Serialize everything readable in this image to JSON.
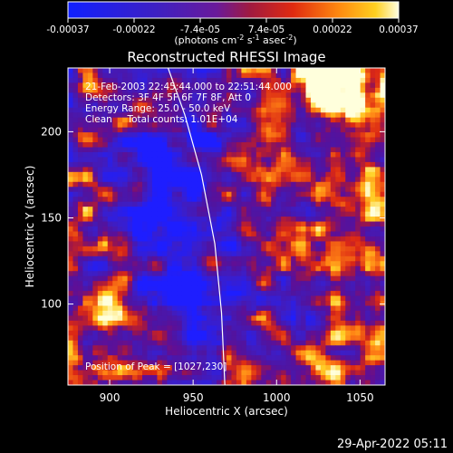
{
  "colorbar": {
    "tick_labels": [
      "-0.00037",
      "-0.00022",
      "-7.4e-05",
      "7.4e-05",
      "0.00022",
      "0.00037"
    ],
    "unit_main": "(photons cm",
    "unit_exp1": "-2",
    "unit_s": " s",
    "unit_exp2": "-1",
    "unit_asec": " asec",
    "unit_exp3": "-2",
    "unit_close": ")",
    "range": [
      -0.00037,
      0.00037
    ]
  },
  "chart_data": {
    "type": "heatmap",
    "title": "Reconstructed RHESSI Image",
    "xlabel": "Heliocentric X (arcsec)",
    "ylabel": "Heliocentric Y (arcsec)",
    "xlim": [
      875,
      1065
    ],
    "ylim": [
      53,
      237
    ],
    "xticks": [
      900,
      950,
      1000,
      1050
    ],
    "yticks": [
      100,
      150,
      200
    ],
    "colormap": "rhessi-blue-purple-red-yellow",
    "peak_position": [
      1027,
      230
    ],
    "limb_arc": [
      [
        935,
        237
      ],
      [
        945,
        210
      ],
      [
        955,
        175
      ],
      [
        963,
        135
      ],
      [
        967,
        95
      ],
      [
        969,
        53
      ]
    ]
  },
  "annotations": {
    "line1": "21-Feb-2003 22:45:44.000 to 22:51:44.000",
    "line2": "Detectors: 3F 4F 5F 6F 7F 8F, Att 0",
    "line3": "Energy Range: 25.0 - 50.0 keV",
    "line4": "Clean     Total counts: 1.01E+04",
    "peak_label": "Position of Peak = [1027,230]"
  },
  "footer": {
    "timestamp": "29-Apr-2022 05:11"
  },
  "colors": {
    "background": "#000000",
    "neg_max": "#1c1cff",
    "zero": "#5a0fa0",
    "pos_low": "#d02020",
    "pos_mid": "#ff7a10",
    "pos_max": "#ffffcc",
    "limb": "#ffffff"
  }
}
